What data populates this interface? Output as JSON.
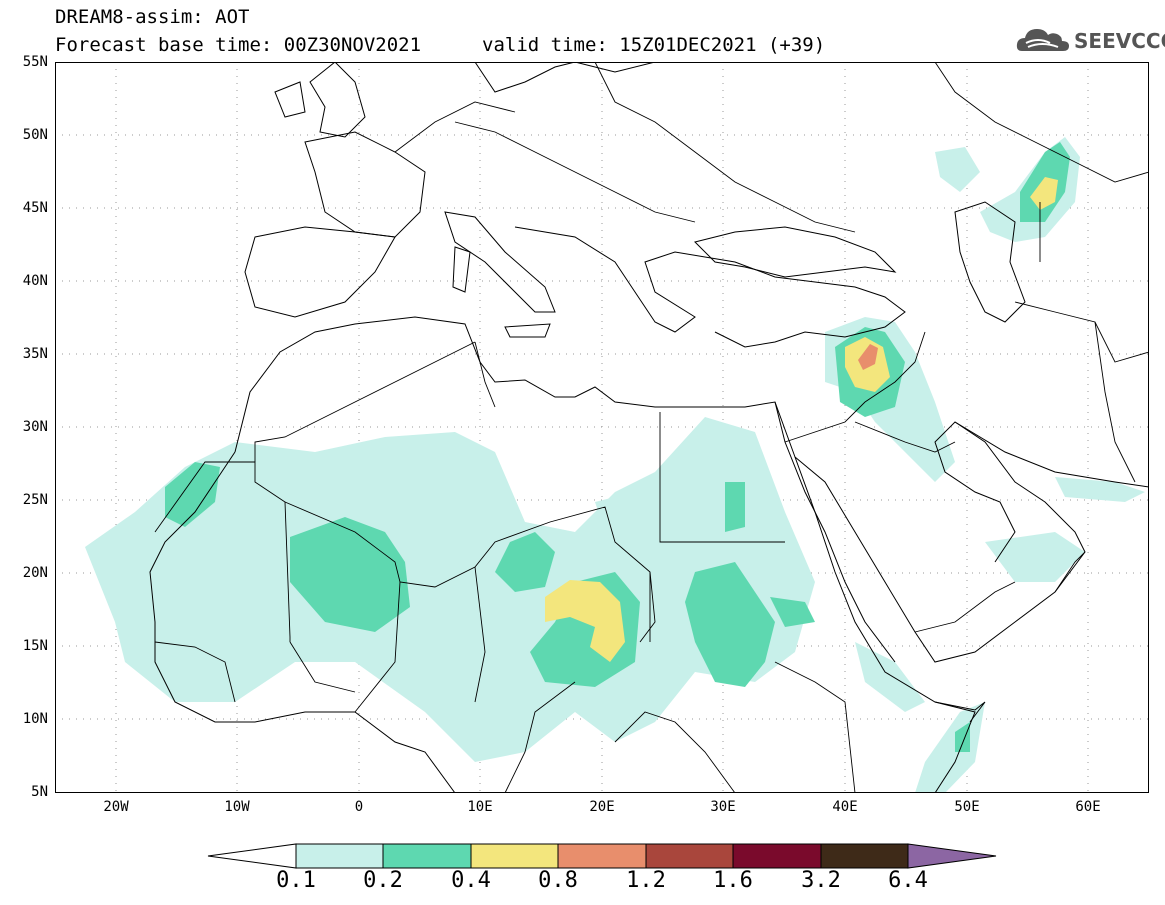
{
  "header": {
    "line1": "DREAM8-assim: AOT",
    "line2": "Forecast base time: 00Z30NOV2021",
    "valid": "valid time: 15Z01DEC2021 (+39)"
  },
  "logo": {
    "text": "SEEVCCC",
    "icon": "cloud-icon"
  },
  "map": {
    "lat_labels": [
      "55N",
      "50N",
      "45N",
      "40N",
      "35N",
      "30N",
      "25N",
      "20N",
      "15N",
      "10N",
      "5N"
    ],
    "lon_labels": [
      "20W",
      "10W",
      "0",
      "10E",
      "20E",
      "30E",
      "40E",
      "50E",
      "60E"
    ],
    "extent": {
      "lon_min": -25,
      "lon_max": 65,
      "lat_min": 5,
      "lat_max": 55
    }
  },
  "colorbar": {
    "levels": [
      "0.1",
      "0.2",
      "0.4",
      "0.8",
      "1.2",
      "1.6",
      "3.2",
      "6.4"
    ],
    "colors": [
      "#c8f0ea",
      "#5ed8b0",
      "#f3e67d",
      "#e88e6c",
      "#a9463c",
      "#7a0a2c",
      "#3e2a18",
      "#8c66a3"
    ]
  }
}
